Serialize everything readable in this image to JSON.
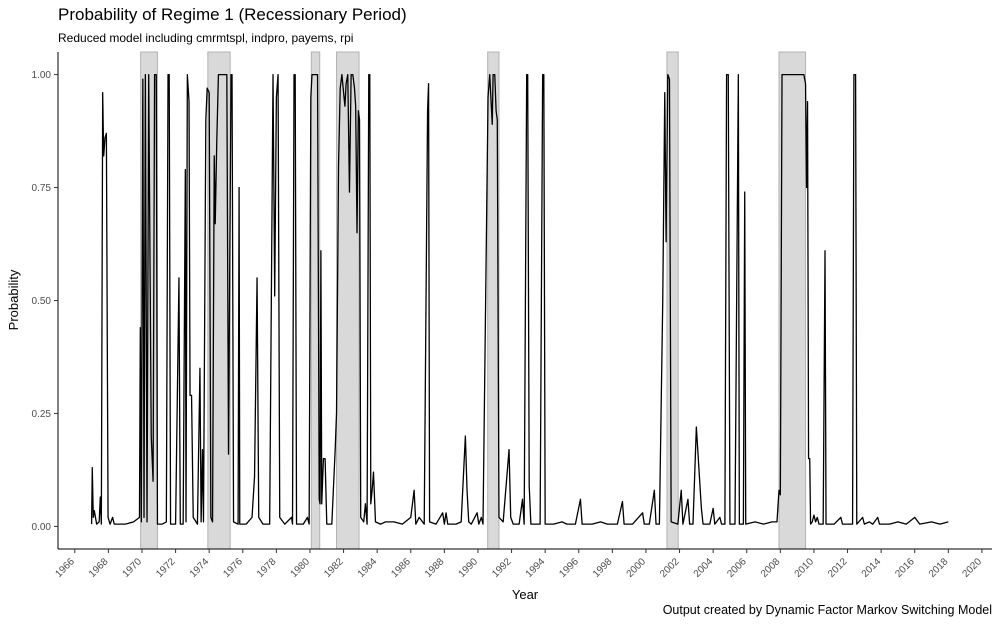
{
  "chart_data": {
    "type": "line",
    "title": "Probability of Regime 1 (Recessionary Period)",
    "subtitle": "Reduced model including cmrmtspl, indpro, payems, rpi",
    "caption": "Output created by Dynamic Factor Markov Switching Model",
    "xlabel": "Year",
    "ylabel": "Probability",
    "xlim": [
      1965.0,
      2020.6
    ],
    "ylim": [
      -0.05,
      1.05
    ],
    "x_ticks": [
      "1966",
      "1968",
      "1970",
      "1972",
      "1974",
      "1976",
      "1978",
      "1980",
      "1982",
      "1984",
      "1986",
      "1988",
      "1990",
      "1992",
      "1994",
      "1996",
      "1998",
      "2000",
      "2002",
      "2004",
      "2006",
      "2008",
      "2010",
      "2012",
      "2014",
      "2016",
      "2018",
      "2020"
    ],
    "y_ticks": [
      "0.00",
      "0.25",
      "0.50",
      "0.75",
      "1.00"
    ],
    "grid": false,
    "recessions": [
      [
        1969.92,
        1970.92
      ],
      [
        1973.92,
        1975.25
      ],
      [
        1980.08,
        1980.58
      ],
      [
        1981.58,
        1982.92
      ],
      [
        1990.58,
        1991.25
      ],
      [
        2001.25,
        2001.92
      ],
      [
        2007.92,
        2009.5
      ]
    ],
    "series": [
      {
        "values": [
          [
            1967.0,
            0.005
          ],
          [
            1967.04,
            0.13
          ],
          [
            1967.1,
            0.02
          ],
          [
            1967.16,
            0.035
          ],
          [
            1967.3,
            0.005
          ],
          [
            1967.45,
            0.01
          ],
          [
            1967.52,
            0.065
          ],
          [
            1967.58,
            0.005
          ],
          [
            1967.66,
            0.96
          ],
          [
            1967.72,
            0.82
          ],
          [
            1967.8,
            0.86
          ],
          [
            1967.88,
            0.87
          ],
          [
            1967.98,
            0.02
          ],
          [
            1968.1,
            0.005
          ],
          [
            1968.25,
            0.02
          ],
          [
            1968.35,
            0.005
          ],
          [
            1969.0,
            0.005
          ],
          [
            1969.5,
            0.01
          ],
          [
            1969.85,
            0.02
          ],
          [
            1969.9,
            0.44
          ],
          [
            1969.96,
            0.01
          ],
          [
            1970.05,
            0.99
          ],
          [
            1970.12,
            0.02
          ],
          [
            1970.2,
            1.0
          ],
          [
            1970.3,
            0.01
          ],
          [
            1970.4,
            1.0
          ],
          [
            1970.55,
            0.2
          ],
          [
            1970.66,
            0.1
          ],
          [
            1970.75,
            1.0
          ],
          [
            1970.85,
            1.0
          ],
          [
            1970.92,
            0.005
          ],
          [
            1971.2,
            0.005
          ],
          [
            1971.45,
            0.01
          ],
          [
            1971.55,
            1.0
          ],
          [
            1971.62,
            1.0
          ],
          [
            1971.7,
            0.005
          ],
          [
            1972.0,
            0.005
          ],
          [
            1972.2,
            0.55
          ],
          [
            1972.28,
            0.005
          ],
          [
            1972.45,
            0.005
          ],
          [
            1972.58,
            0.79
          ],
          [
            1972.62,
            0.01
          ],
          [
            1972.7,
            1.0
          ],
          [
            1972.8,
            0.94
          ],
          [
            1972.86,
            0.29
          ],
          [
            1972.95,
            0.29
          ],
          [
            1973.05,
            0.02
          ],
          [
            1973.3,
            0.005
          ],
          [
            1973.45,
            0.35
          ],
          [
            1973.52,
            0.01
          ],
          [
            1973.6,
            0.17
          ],
          [
            1973.66,
            0.01
          ],
          [
            1973.8,
            0.9
          ],
          [
            1973.88,
            0.97
          ],
          [
            1974.0,
            0.96
          ],
          [
            1974.1,
            0.02
          ],
          [
            1974.2,
            0.01
          ],
          [
            1974.3,
            0.82
          ],
          [
            1974.36,
            0.67
          ],
          [
            1974.45,
            0.85
          ],
          [
            1974.55,
            1.0
          ],
          [
            1974.75,
            1.0
          ],
          [
            1975.05,
            1.0
          ],
          [
            1975.15,
            0.16
          ],
          [
            1975.3,
            1.0
          ],
          [
            1975.36,
            1.0
          ],
          [
            1975.45,
            0.01
          ],
          [
            1975.72,
            0.005
          ],
          [
            1975.78,
            0.75
          ],
          [
            1975.82,
            0.005
          ],
          [
            1976.2,
            0.005
          ],
          [
            1976.55,
            0.02
          ],
          [
            1976.7,
            0.11
          ],
          [
            1976.85,
            0.55
          ],
          [
            1976.95,
            0.02
          ],
          [
            1977.2,
            0.005
          ],
          [
            1977.6,
            0.005
          ],
          [
            1977.8,
            1.0
          ],
          [
            1977.9,
            0.51
          ],
          [
            1978.0,
            0.95
          ],
          [
            1978.1,
            1.0
          ],
          [
            1978.2,
            0.02
          ],
          [
            1978.5,
            0.005
          ],
          [
            1978.9,
            0.02
          ],
          [
            1978.96,
            0.005
          ],
          [
            1979.05,
            1.0
          ],
          [
            1979.12,
            1.0
          ],
          [
            1979.2,
            0.005
          ],
          [
            1979.6,
            0.005
          ],
          [
            1979.85,
            0.02
          ],
          [
            1979.95,
            0.005
          ],
          [
            1980.05,
            0.95
          ],
          [
            1980.12,
            1.0
          ],
          [
            1980.45,
            1.0
          ],
          [
            1980.55,
            0.06
          ],
          [
            1980.6,
            0.05
          ],
          [
            1980.65,
            0.61
          ],
          [
            1980.7,
            0.05
          ],
          [
            1980.8,
            0.15
          ],
          [
            1980.9,
            0.15
          ],
          [
            1981.0,
            0.005
          ],
          [
            1981.3,
            0.005
          ],
          [
            1981.5,
            0.17
          ],
          [
            1981.58,
            0.25
          ],
          [
            1981.7,
            0.8
          ],
          [
            1981.8,
            0.97
          ],
          [
            1981.9,
            1.0
          ],
          [
            1982.0,
            0.96
          ],
          [
            1982.08,
            0.93
          ],
          [
            1982.15,
            0.98
          ],
          [
            1982.25,
            1.0
          ],
          [
            1982.35,
            0.74
          ],
          [
            1982.45,
            1.0
          ],
          [
            1982.55,
            1.0
          ],
          [
            1982.65,
            0.97
          ],
          [
            1982.72,
            0.93
          ],
          [
            1982.8,
            0.65
          ],
          [
            1982.88,
            0.92
          ],
          [
            1982.95,
            0.9
          ],
          [
            1983.02,
            0.02
          ],
          [
            1983.2,
            0.01
          ],
          [
            1983.3,
            0.05
          ],
          [
            1983.4,
            0.005
          ],
          [
            1983.5,
            1.0
          ],
          [
            1983.56,
            1.0
          ],
          [
            1983.62,
            0.05
          ],
          [
            1983.7,
            0.08
          ],
          [
            1983.78,
            0.12
          ],
          [
            1983.9,
            0.01
          ],
          [
            1984.2,
            0.005
          ],
          [
            1984.5,
            0.01
          ],
          [
            1985.0,
            0.01
          ],
          [
            1985.5,
            0.005
          ],
          [
            1986.0,
            0.02
          ],
          [
            1986.2,
            0.08
          ],
          [
            1986.3,
            0.005
          ],
          [
            1986.5,
            0.02
          ],
          [
            1986.8,
            0.005
          ],
          [
            1987.0,
            0.92
          ],
          [
            1987.06,
            0.98
          ],
          [
            1987.12,
            0.01
          ],
          [
            1987.5,
            0.005
          ],
          [
            1987.9,
            0.03
          ],
          [
            1988.0,
            0.005
          ],
          [
            1988.1,
            0.03
          ],
          [
            1988.2,
            0.005
          ],
          [
            1988.7,
            0.005
          ],
          [
            1989.0,
            0.01
          ],
          [
            1989.25,
            0.2
          ],
          [
            1989.35,
            0.08
          ],
          [
            1989.45,
            0.01
          ],
          [
            1989.6,
            0.005
          ],
          [
            1989.95,
            0.03
          ],
          [
            1990.05,
            0.005
          ],
          [
            1990.2,
            0.02
          ],
          [
            1990.3,
            0.005
          ],
          [
            1990.6,
            0.95
          ],
          [
            1990.7,
            1.0
          ],
          [
            1990.85,
            0.89
          ],
          [
            1990.9,
            1.0
          ],
          [
            1991.0,
            1.0
          ],
          [
            1991.08,
            0.92
          ],
          [
            1991.15,
            0.9
          ],
          [
            1991.25,
            0.02
          ],
          [
            1991.5,
            0.01
          ],
          [
            1991.85,
            0.17
          ],
          [
            1991.95,
            0.02
          ],
          [
            1992.1,
            0.005
          ],
          [
            1992.45,
            0.005
          ],
          [
            1992.65,
            0.06
          ],
          [
            1992.75,
            0.005
          ],
          [
            1992.9,
            1.0
          ],
          [
            1992.96,
            1.0
          ],
          [
            1993.05,
            0.09
          ],
          [
            1993.15,
            0.005
          ],
          [
            1993.7,
            0.005
          ],
          [
            1993.85,
            1.0
          ],
          [
            1993.92,
            1.0
          ],
          [
            1994.0,
            0.005
          ],
          [
            1994.5,
            0.005
          ],
          [
            1995.0,
            0.01
          ],
          [
            1995.3,
            0.005
          ],
          [
            1995.8,
            0.005
          ],
          [
            1996.1,
            0.06
          ],
          [
            1996.2,
            0.005
          ],
          [
            1996.8,
            0.005
          ],
          [
            1997.3,
            0.01
          ],
          [
            1997.7,
            0.005
          ],
          [
            1998.3,
            0.005
          ],
          [
            1998.6,
            0.055
          ],
          [
            1998.7,
            0.005
          ],
          [
            1999.2,
            0.005
          ],
          [
            1999.8,
            0.03
          ],
          [
            1999.9,
            0.005
          ],
          [
            2000.2,
            0.005
          ],
          [
            2000.5,
            0.08
          ],
          [
            2000.6,
            0.005
          ],
          [
            2000.8,
            0.005
          ],
          [
            2001.0,
            0.5
          ],
          [
            2001.12,
            0.96
          ],
          [
            2001.2,
            0.63
          ],
          [
            2001.3,
            1.0
          ],
          [
            2001.4,
            0.99
          ],
          [
            2001.5,
            0.01
          ],
          [
            2001.9,
            0.005
          ],
          [
            2002.1,
            0.08
          ],
          [
            2002.2,
            0.005
          ],
          [
            2002.5,
            0.06
          ],
          [
            2002.6,
            0.005
          ],
          [
            2002.8,
            0.005
          ],
          [
            2003.0,
            0.22
          ],
          [
            2003.3,
            0.04
          ],
          [
            2003.4,
            0.005
          ],
          [
            2003.8,
            0.005
          ],
          [
            2004.0,
            0.04
          ],
          [
            2004.1,
            0.005
          ],
          [
            2004.4,
            0.02
          ],
          [
            2004.5,
            0.005
          ],
          [
            2004.7,
            0.005
          ],
          [
            2004.8,
            1.0
          ],
          [
            2004.9,
            1.0
          ],
          [
            2005.0,
            0.005
          ],
          [
            2005.3,
            0.005
          ],
          [
            2005.5,
            1.0
          ],
          [
            2005.56,
            0.005
          ],
          [
            2005.8,
            0.005
          ],
          [
            2005.88,
            0.74
          ],
          [
            2005.94,
            0.005
          ],
          [
            2006.5,
            0.01
          ],
          [
            2007.0,
            0.005
          ],
          [
            2007.5,
            0.01
          ],
          [
            2007.8,
            0.01
          ],
          [
            2007.92,
            0.08
          ],
          [
            2008.0,
            0.07
          ],
          [
            2008.1,
            1.0
          ],
          [
            2008.3,
            1.0
          ],
          [
            2008.6,
            1.0
          ],
          [
            2008.9,
            1.0
          ],
          [
            2009.2,
            1.0
          ],
          [
            2009.4,
            1.0
          ],
          [
            2009.5,
            0.98
          ],
          [
            2009.56,
            0.75
          ],
          [
            2009.62,
            0.94
          ],
          [
            2009.68,
            0.15
          ],
          [
            2009.75,
            0.15
          ],
          [
            2009.8,
            0.005
          ],
          [
            2009.9,
            0.01
          ],
          [
            2010.0,
            0.025
          ],
          [
            2010.1,
            0.01
          ],
          [
            2010.2,
            0.02
          ],
          [
            2010.3,
            0.005
          ],
          [
            2010.55,
            0.005
          ],
          [
            2010.66,
            0.61
          ],
          [
            2010.72,
            0.005
          ],
          [
            2011.2,
            0.005
          ],
          [
            2011.6,
            0.02
          ],
          [
            2011.7,
            0.005
          ],
          [
            2012.3,
            0.005
          ],
          [
            2012.38,
            1.0
          ],
          [
            2012.48,
            1.0
          ],
          [
            2012.55,
            0.005
          ],
          [
            2012.9,
            0.02
          ],
          [
            2013.0,
            0.005
          ],
          [
            2013.3,
            0.01
          ],
          [
            2013.5,
            0.005
          ],
          [
            2013.8,
            0.02
          ],
          [
            2013.9,
            0.005
          ],
          [
            2014.5,
            0.005
          ],
          [
            2015.0,
            0.01
          ],
          [
            2015.5,
            0.005
          ],
          [
            2016.0,
            0.02
          ],
          [
            2016.3,
            0.005
          ],
          [
            2017.0,
            0.01
          ],
          [
            2017.5,
            0.005
          ],
          [
            2018.0,
            0.01
          ]
        ]
      }
    ]
  }
}
